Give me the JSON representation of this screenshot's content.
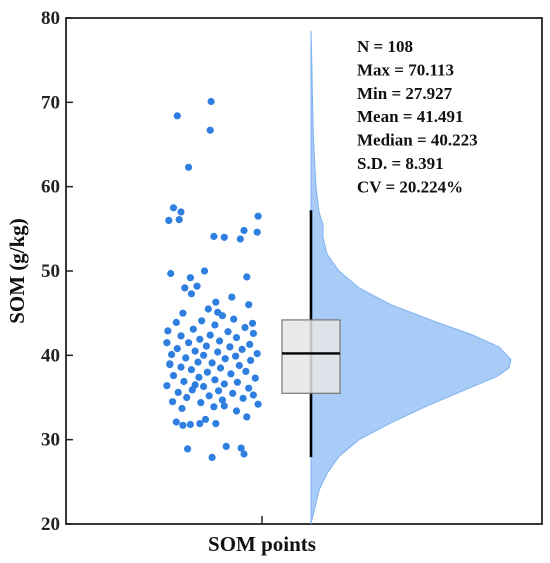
{
  "chart_data": {
    "type": "raincloud",
    "xlabel": "SOM points",
    "ylabel": "SOM (g/kg)",
    "ylim": [
      20,
      80
    ],
    "yticks": [
      20,
      30,
      40,
      50,
      60,
      70,
      80
    ],
    "grid": false,
    "colors": {
      "points": "#2f7fe0",
      "density_fill": "#a8ccf7",
      "density_stroke": "#7fb2f0",
      "box_fill": "#e6e6e6",
      "box_stroke": "#777777"
    },
    "stats": {
      "lines": [
        "N = 108",
        "Max = 70.113",
        "Min = 27.927",
        "Mean = 41.491",
        "Median = 40.223",
        "S.D. = 8.391",
        "CV = 20.224%"
      ],
      "n": 108,
      "max": 70.113,
      "min": 27.927,
      "mean": 41.491,
      "median": 40.223,
      "sd": 8.391,
      "cv_percent": 20.224
    },
    "box": {
      "q1": 35.5,
      "median": 40.223,
      "q3": 44.2,
      "whisker_low": 27.927,
      "whisker_high": 57.2
    },
    "density": [
      [
        20.0,
        0.0
      ],
      [
        22.0,
        0.02
      ],
      [
        24.0,
        0.04
      ],
      [
        26.0,
        0.08
      ],
      [
        28.0,
        0.14
      ],
      [
        30.0,
        0.24
      ],
      [
        32.0,
        0.4
      ],
      [
        34.0,
        0.58
      ],
      [
        36.0,
        0.78
      ],
      [
        37.5,
        0.93
      ],
      [
        38.5,
        0.99
      ],
      [
        39.5,
        1.0
      ],
      [
        41.0,
        0.94
      ],
      [
        42.5,
        0.8
      ],
      [
        44.0,
        0.62
      ],
      [
        46.0,
        0.4
      ],
      [
        48.0,
        0.24
      ],
      [
        50.0,
        0.14
      ],
      [
        52.0,
        0.08
      ],
      [
        54.0,
        0.06
      ],
      [
        55.5,
        0.06
      ],
      [
        57.0,
        0.04
      ],
      [
        60.0,
        0.025
      ],
      [
        63.0,
        0.018
      ],
      [
        66.0,
        0.012
      ],
      [
        69.0,
        0.009
      ],
      [
        72.0,
        0.006
      ],
      [
        75.0,
        0.004
      ],
      [
        77.5,
        0.001
      ],
      [
        78.5,
        0.0
      ]
    ],
    "points": [
      [
        0.12,
        68.4
      ],
      [
        0.48,
        70.1
      ],
      [
        0.47,
        66.7
      ],
      [
        0.24,
        62.3
      ],
      [
        0.08,
        57.5
      ],
      [
        0.16,
        57.0
      ],
      [
        0.03,
        56.0
      ],
      [
        0.14,
        56.1
      ],
      [
        0.98,
        56.5
      ],
      [
        0.97,
        54.6
      ],
      [
        0.83,
        54.8
      ],
      [
        0.51,
        54.1
      ],
      [
        0.62,
        54.0
      ],
      [
        0.79,
        53.8
      ],
      [
        0.41,
        50.0
      ],
      [
        0.05,
        49.7
      ],
      [
        0.26,
        49.2
      ],
      [
        0.86,
        49.3
      ],
      [
        0.33,
        48.2
      ],
      [
        0.2,
        48.0
      ],
      [
        0.27,
        47.3
      ],
      [
        0.7,
        46.9
      ],
      [
        0.53,
        46.3
      ],
      [
        0.88,
        46.0
      ],
      [
        0.45,
        45.5
      ],
      [
        0.18,
        45.0
      ],
      [
        0.6,
        44.7
      ],
      [
        0.72,
        44.3
      ],
      [
        0.38,
        44.1
      ],
      [
        0.11,
        43.9
      ],
      [
        0.52,
        43.6
      ],
      [
        0.84,
        43.3
      ],
      [
        0.29,
        43.1
      ],
      [
        0.02,
        42.9
      ],
      [
        0.66,
        42.8
      ],
      [
        0.93,
        42.6
      ],
      [
        0.47,
        42.4
      ],
      [
        0.16,
        42.3
      ],
      [
        0.75,
        42.1
      ],
      [
        0.36,
        41.9
      ],
      [
        0.57,
        41.7
      ],
      [
        0.01,
        41.5
      ],
      [
        0.24,
        41.5
      ],
      [
        0.89,
        41.3
      ],
      [
        0.43,
        41.1
      ],
      [
        0.68,
        41.0
      ],
      [
        0.12,
        40.8
      ],
      [
        0.81,
        40.7
      ],
      [
        0.31,
        40.5
      ],
      [
        0.55,
        40.4
      ],
      [
        0.97,
        40.2
      ],
      [
        0.06,
        40.1
      ],
      [
        0.4,
        40.0
      ],
      [
        0.74,
        39.9
      ],
      [
        0.21,
        39.7
      ],
      [
        0.63,
        39.6
      ],
      [
        0.9,
        39.4
      ],
      [
        0.34,
        39.2
      ],
      [
        0.49,
        39.1
      ],
      [
        0.04,
        38.9
      ],
      [
        0.78,
        38.8
      ],
      [
        0.16,
        38.6
      ],
      [
        0.58,
        38.5
      ],
      [
        0.27,
        38.3
      ],
      [
        0.85,
        38.1
      ],
      [
        0.44,
        38.0
      ],
      [
        0.69,
        37.8
      ],
      [
        0.08,
        37.6
      ],
      [
        0.35,
        37.4
      ],
      [
        0.95,
        37.3
      ],
      [
        0.52,
        37.1
      ],
      [
        0.19,
        36.9
      ],
      [
        0.76,
        36.8
      ],
      [
        0.62,
        36.6
      ],
      [
        0.01,
        36.4
      ],
      [
        0.4,
        36.3
      ],
      [
        0.88,
        36.1
      ],
      [
        0.28,
        35.9
      ],
      [
        0.56,
        35.8
      ],
      [
        0.13,
        35.6
      ],
      [
        0.71,
        35.5
      ],
      [
        0.93,
        35.3
      ],
      [
        0.46,
        35.2
      ],
      [
        0.22,
        35.0
      ],
      [
        0.82,
        34.9
      ],
      [
        0.6,
        34.7
      ],
      [
        0.07,
        34.5
      ],
      [
        0.37,
        34.4
      ],
      [
        0.98,
        34.2
      ],
      [
        0.51,
        33.9
      ],
      [
        0.17,
        33.7
      ],
      [
        0.75,
        33.4
      ],
      [
        0.42,
        32.4
      ],
      [
        0.11,
        32.1
      ],
      [
        0.26,
        31.8
      ],
      [
        0.18,
        31.7
      ],
      [
        0.53,
        31.9
      ],
      [
        0.86,
        32.7
      ],
      [
        0.62,
        34.0
      ],
      [
        0.31,
        36.5
      ],
      [
        0.04,
        39.0
      ],
      [
        0.92,
        43.8
      ],
      [
        0.55,
        45.1
      ],
      [
        0.36,
        31.9
      ],
      [
        0.23,
        28.9
      ],
      [
        0.64,
        29.2
      ],
      [
        0.8,
        29.0
      ],
      [
        0.49,
        27.9
      ],
      [
        0.83,
        28.3
      ]
    ]
  }
}
